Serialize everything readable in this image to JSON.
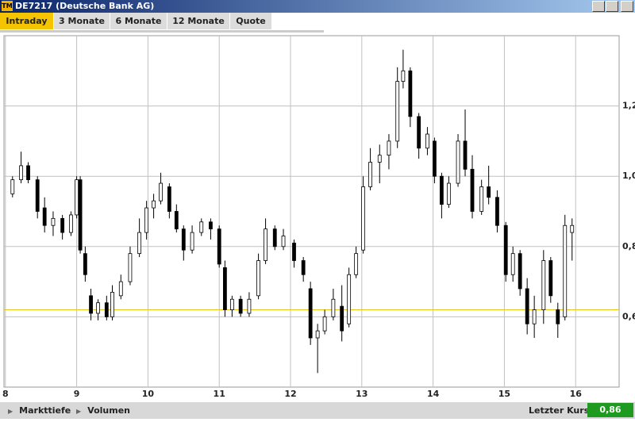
{
  "window": {
    "icon": "TM",
    "title": "DE7217 (Deutsche Bank AG)"
  },
  "tabs": [
    "Intraday",
    "3 Monate",
    "6 Monate",
    "12 Monate",
    "Quote"
  ],
  "chart_data": {
    "type": "candlestick",
    "x": [
      8.1,
      8.22,
      8.32,
      8.45,
      8.55,
      8.67,
      8.8,
      8.92,
      9.0,
      9.05,
      9.12,
      9.2,
      9.3,
      9.42,
      9.5,
      9.62,
      9.75,
      9.88,
      9.98,
      10.08,
      10.18,
      10.3,
      10.4,
      10.5,
      10.62,
      10.75,
      10.88,
      11.0,
      11.08,
      11.18,
      11.3,
      11.42,
      11.55,
      11.65,
      11.78,
      11.9,
      12.05,
      12.18,
      12.28,
      12.38,
      12.48,
      12.6,
      12.72,
      12.82,
      12.92,
      13.02,
      13.12,
      13.25,
      13.38,
      13.5,
      13.58,
      13.68,
      13.8,
      13.92,
      14.02,
      14.12,
      14.22,
      14.35,
      14.45,
      14.55,
      14.68,
      14.78,
      14.9,
      15.02,
      15.12,
      15.22,
      15.32,
      15.42,
      15.55,
      15.65,
      15.75,
      15.85,
      15.95
    ],
    "open": [
      0.95,
      0.99,
      1.03,
      0.99,
      0.91,
      0.86,
      0.88,
      0.84,
      0.89,
      0.99,
      0.78,
      0.66,
      0.61,
      0.64,
      0.6,
      0.66,
      0.7,
      0.78,
      0.84,
      0.91,
      0.93,
      0.97,
      0.9,
      0.85,
      0.79,
      0.84,
      0.87,
      0.85,
      0.74,
      0.62,
      0.65,
      0.61,
      0.66,
      0.76,
      0.85,
      0.8,
      0.81,
      0.76,
      0.68,
      0.54,
      0.56,
      0.6,
      0.63,
      0.58,
      0.72,
      0.79,
      0.97,
      1.04,
      1.06,
      1.1,
      1.27,
      1.3,
      1.17,
      1.08,
      1.1,
      1.0,
      0.92,
      0.98,
      1.1,
      1.02,
      0.9,
      0.97,
      0.94,
      0.86,
      0.72,
      0.78,
      0.68,
      0.58,
      0.62,
      0.76,
      0.62,
      0.6,
      0.84
    ],
    "high": [
      1.0,
      1.07,
      1.04,
      1.0,
      0.94,
      0.9,
      0.89,
      0.9,
      1.0,
      1.0,
      0.8,
      0.68,
      0.65,
      0.66,
      0.69,
      0.72,
      0.8,
      0.88,
      0.93,
      0.95,
      1.01,
      0.98,
      0.92,
      0.86,
      0.86,
      0.88,
      0.88,
      0.86,
      0.76,
      0.66,
      0.66,
      0.67,
      0.78,
      0.88,
      0.86,
      0.85,
      0.82,
      0.77,
      0.7,
      0.58,
      0.62,
      0.68,
      0.69,
      0.74,
      0.8,
      1.0,
      1.08,
      1.09,
      1.12,
      1.31,
      1.36,
      1.31,
      1.18,
      1.14,
      1.11,
      1.01,
      1.0,
      1.12,
      1.19,
      1.06,
      0.99,
      1.03,
      0.96,
      0.87,
      0.8,
      0.79,
      0.71,
      0.66,
      0.79,
      0.77,
      0.64,
      0.89,
      0.88
    ],
    "low": [
      0.94,
      0.98,
      0.98,
      0.88,
      0.84,
      0.83,
      0.82,
      0.83,
      0.88,
      0.78,
      0.7,
      0.59,
      0.59,
      0.59,
      0.59,
      0.65,
      0.69,
      0.77,
      0.82,
      0.88,
      0.92,
      0.88,
      0.84,
      0.76,
      0.78,
      0.83,
      0.82,
      0.74,
      0.6,
      0.6,
      0.6,
      0.6,
      0.65,
      0.75,
      0.79,
      0.79,
      0.74,
      0.7,
      0.52,
      0.44,
      0.55,
      0.59,
      0.53,
      0.57,
      0.71,
      0.78,
      0.96,
      0.98,
      1.02,
      1.08,
      1.25,
      1.14,
      1.05,
      1.06,
      0.98,
      0.88,
      0.91,
      0.97,
      1.0,
      0.88,
      0.89,
      0.92,
      0.84,
      0.7,
      0.7,
      0.66,
      0.55,
      0.54,
      0.58,
      0.64,
      0.54,
      0.59,
      0.76
    ],
    "close": [
      0.99,
      1.03,
      0.99,
      0.9,
      0.86,
      0.88,
      0.84,
      0.89,
      0.99,
      0.79,
      0.72,
      0.61,
      0.64,
      0.6,
      0.67,
      0.7,
      0.78,
      0.84,
      0.91,
      0.93,
      0.98,
      0.9,
      0.85,
      0.79,
      0.84,
      0.87,
      0.85,
      0.75,
      0.62,
      0.65,
      0.61,
      0.65,
      0.76,
      0.85,
      0.8,
      0.83,
      0.76,
      0.72,
      0.54,
      0.56,
      0.6,
      0.65,
      0.56,
      0.72,
      0.78,
      0.97,
      1.04,
      1.06,
      1.1,
      1.27,
      1.3,
      1.17,
      1.08,
      1.12,
      1.0,
      0.92,
      0.98,
      1.1,
      1.02,
      0.9,
      0.97,
      0.94,
      0.86,
      0.72,
      0.78,
      0.68,
      0.58,
      0.62,
      0.76,
      0.66,
      0.58,
      0.86,
      0.86
    ],
    "xlim": [
      7.98,
      16.61
    ],
    "ylim": [
      0.4,
      1.4
    ],
    "xticks": [
      8,
      9,
      10,
      11,
      12,
      13,
      14,
      15,
      16
    ],
    "yticks": [
      {
        "value": 0.6,
        "label": "0,6"
      },
      {
        "value": 0.8,
        "label": "0,8"
      },
      {
        "value": 1.0,
        "label": "1,0"
      },
      {
        "value": 1.2,
        "label": "1,2"
      }
    ],
    "reference_line": 0.62,
    "reference_color": "#e6c619",
    "up_color": "#ffffff",
    "down_color": "#000000",
    "grid": true
  },
  "footer": {
    "links": [
      "Markttiefe",
      "Volumen"
    ],
    "last_label": "Letzter Kurs",
    "last_value": "0,86"
  }
}
